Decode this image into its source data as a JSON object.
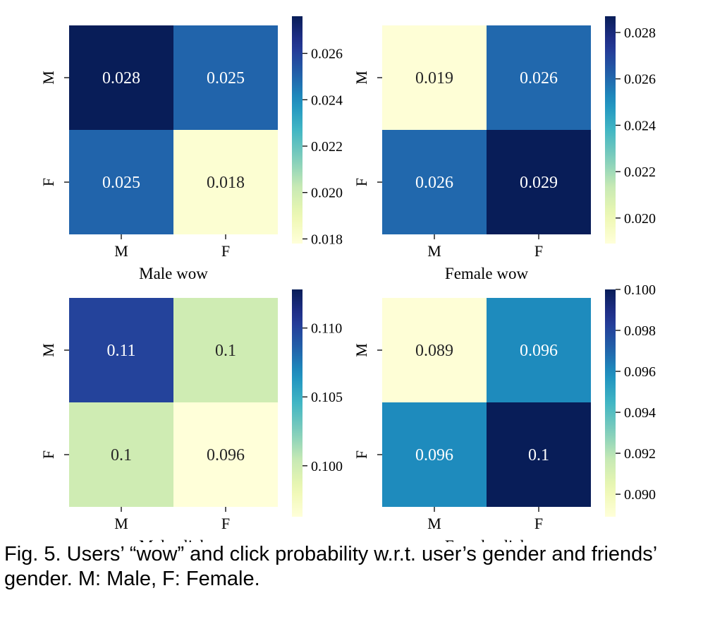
{
  "chart_data": [
    {
      "type": "heatmap",
      "title": "Male wow",
      "xlabel": "Male wow",
      "x_categories": [
        "M",
        "F"
      ],
      "y_categories": [
        "M",
        "F"
      ],
      "values": [
        [
          0.028,
          0.025
        ],
        [
          0.025,
          0.018
        ]
      ],
      "colorbar": {
        "range": [
          0.0178,
          0.0276
        ],
        "ticks": [
          0.018,
          0.02,
          0.022,
          0.024,
          0.026
        ],
        "tick_labels": [
          "0.018",
          "0.020",
          "0.022",
          "0.024",
          "0.026"
        ]
      }
    },
    {
      "type": "heatmap",
      "title": "Female wow",
      "xlabel": "Female wow",
      "x_categories": [
        "M",
        "F"
      ],
      "y_categories": [
        "M",
        "F"
      ],
      "values": [
        [
          0.019,
          0.026
        ],
        [
          0.026,
          0.029
        ]
      ],
      "colorbar": {
        "range": [
          0.0189,
          0.0287
        ],
        "ticks": [
          0.02,
          0.022,
          0.024,
          0.026,
          0.028
        ],
        "tick_labels": [
          "0.020",
          "0.022",
          "0.024",
          "0.026",
          "0.028"
        ]
      }
    },
    {
      "type": "heatmap",
      "title": "Male click",
      "xlabel": "Male click",
      "x_categories": [
        "M",
        "F"
      ],
      "y_categories": [
        "M",
        "F"
      ],
      "values": [
        [
          0.11,
          0.1
        ],
        [
          0.1,
          0.096
        ]
      ],
      "display_labels": [
        [
          "0.11",
          "0.1"
        ],
        [
          "0.1",
          "0.096"
        ]
      ],
      "colorbar": {
        "range": [
          0.0963,
          0.1128
        ],
        "ticks": [
          0.1,
          0.105,
          0.11
        ],
        "tick_labels": [
          "0.100",
          "0.105",
          "0.110"
        ]
      }
    },
    {
      "type": "heatmap",
      "title": "Female click",
      "xlabel": "Female click",
      "x_categories": [
        "M",
        "F"
      ],
      "y_categories": [
        "M",
        "F"
      ],
      "values": [
        [
          0.089,
          0.096
        ],
        [
          0.096,
          0.1
        ]
      ],
      "display_labels": [
        [
          "0.089",
          "0.096"
        ],
        [
          "0.096",
          "0.1"
        ]
      ],
      "colorbar": {
        "range": [
          0.0889,
          0.1
        ],
        "ticks": [
          0.09,
          0.092,
          0.094,
          0.096,
          0.098,
          0.1
        ],
        "tick_labels": [
          "0.090",
          "0.092",
          "0.094",
          "0.096",
          "0.098",
          "0.100"
        ]
      }
    }
  ],
  "caption": "Fig. 5. Users’ “wow” and click probability w.r.t. user’s gender and friends’ gender. M: Male, F: Female.",
  "colormap": {
    "name": "YlGnBu",
    "stops": [
      "#ffffd9",
      "#edf8b1",
      "#c7e9b4",
      "#7fcdbb",
      "#41b6c4",
      "#1d91c0",
      "#225ea8",
      "#253494",
      "#081d58"
    ]
  }
}
